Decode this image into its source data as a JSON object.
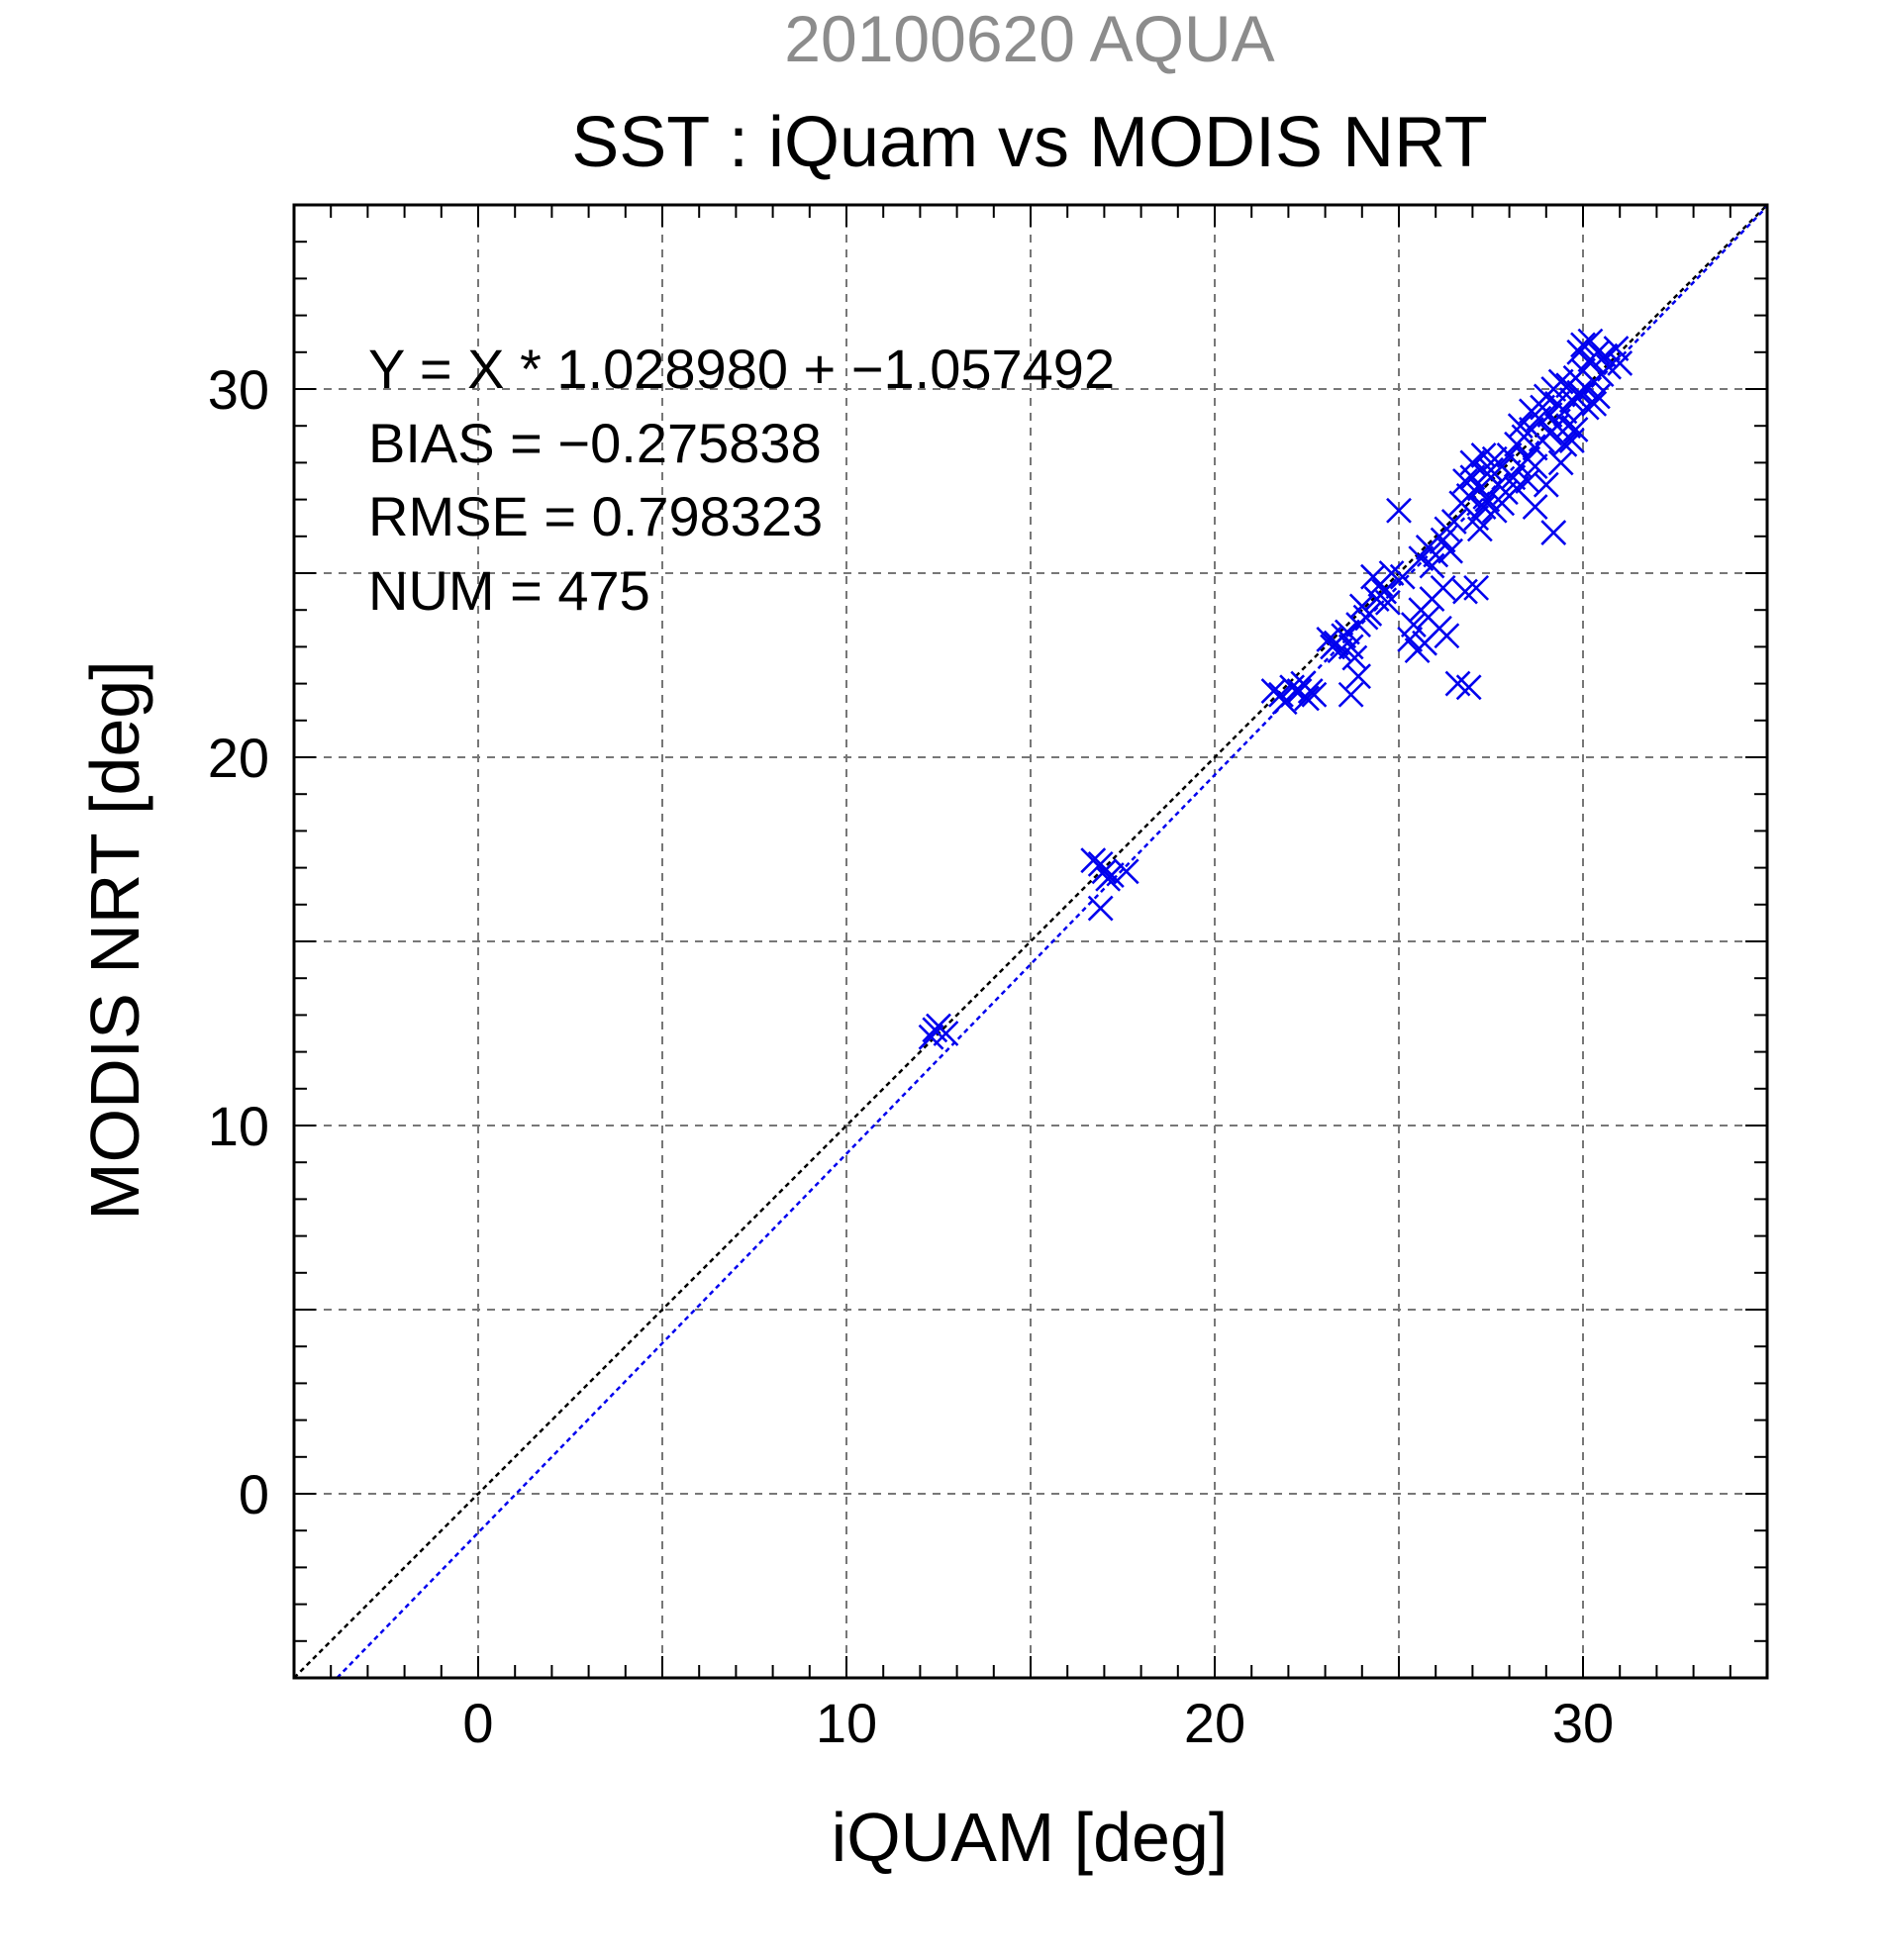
{
  "chart_data": {
    "type": "scatter",
    "supertitle": "20100620 AQUA",
    "title": "SST : iQuam vs MODIS NRT",
    "xlabel": "iQUAM [deg]",
    "ylabel": "MODIS NRT [deg]",
    "xlim": [
      -5,
      35
    ],
    "ylim": [
      -5,
      35
    ],
    "x_ticks": [
      0,
      10,
      20,
      30
    ],
    "y_ticks": [
      0,
      10,
      20,
      30
    ],
    "grid": true,
    "annotations": [
      "Y = X * 1.028980 + −1.057492",
      "BIAS = −0.275838",
      "RMSE = 0.798323",
      "NUM = 475"
    ],
    "lines": [
      {
        "label": "identity",
        "slope": 1.0,
        "intercept": 0.0,
        "color": "#000000"
      },
      {
        "label": "fit",
        "slope": 1.02898,
        "intercept": -1.057492,
        "color": "#0000ee"
      }
    ],
    "series": [
      {
        "marker": "x",
        "color": "#0000ee",
        "points": [
          [
            12.4,
            12.6
          ],
          [
            12.5,
            12.7
          ],
          [
            12.7,
            12.5
          ],
          [
            12.3,
            12.4
          ],
          [
            16.7,
            17.2
          ],
          [
            16.9,
            17.1
          ],
          [
            17.0,
            16.9
          ],
          [
            17.2,
            16.8
          ],
          [
            17.6,
            16.9
          ],
          [
            16.9,
            15.9
          ],
          [
            17.1,
            16.7
          ],
          [
            21.6,
            21.8
          ],
          [
            21.8,
            21.7
          ],
          [
            22.1,
            21.9
          ],
          [
            22.3,
            21.8
          ],
          [
            22.5,
            21.6
          ],
          [
            22.7,
            21.7
          ],
          [
            22.4,
            22.0
          ],
          [
            21.9,
            21.5
          ],
          [
            22.6,
            21.8
          ],
          [
            23.1,
            23.2
          ],
          [
            23.3,
            23.1
          ],
          [
            23.5,
            23.3
          ],
          [
            23.7,
            23.0
          ],
          [
            23.4,
            22.9
          ],
          [
            23.6,
            23.4
          ],
          [
            23.2,
            23.0
          ],
          [
            23.8,
            22.7
          ],
          [
            23.9,
            22.2
          ],
          [
            23.7,
            21.7
          ],
          [
            23.9,
            23.6
          ],
          [
            24.0,
            24.1
          ],
          [
            24.2,
            23.9
          ],
          [
            24.4,
            24.3
          ],
          [
            24.6,
            24.5
          ],
          [
            24.3,
            24.9
          ],
          [
            24.8,
            25.0
          ],
          [
            25.1,
            24.9
          ],
          [
            24.7,
            24.2
          ],
          [
            24.5,
            24.7
          ],
          [
            24.1,
            23.8
          ],
          [
            25.0,
            26.7
          ],
          [
            25.3,
            23.2
          ],
          [
            25.5,
            22.9
          ],
          [
            25.7,
            23.1
          ],
          [
            25.4,
            23.6
          ],
          [
            25.6,
            24.0
          ],
          [
            25.8,
            23.8
          ],
          [
            26.1,
            23.5
          ],
          [
            26.3,
            23.3
          ],
          [
            25.9,
            24.3
          ],
          [
            26.2,
            24.6
          ],
          [
            25.6,
            25.4
          ],
          [
            25.8,
            25.7
          ],
          [
            26.0,
            25.5
          ],
          [
            26.2,
            25.9
          ],
          [
            26.4,
            25.6
          ],
          [
            25.9,
            25.2
          ],
          [
            26.3,
            26.2
          ],
          [
            26.5,
            26.4
          ],
          [
            26.6,
            22.0
          ],
          [
            26.9,
            21.9
          ],
          [
            26.8,
            24.5
          ],
          [
            27.1,
            24.6
          ],
          [
            26.7,
            26.9
          ],
          [
            26.9,
            27.1
          ],
          [
            27.0,
            27.6
          ],
          [
            27.2,
            27.3
          ],
          [
            27.4,
            27.0
          ],
          [
            27.1,
            26.5
          ],
          [
            27.3,
            26.8
          ],
          [
            27.5,
            27.8
          ],
          [
            27.7,
            27.4
          ],
          [
            27.6,
            26.7
          ],
          [
            27.8,
            27.9
          ],
          [
            27.9,
            27.2
          ],
          [
            27.0,
            28.0
          ],
          [
            27.3,
            28.2
          ],
          [
            27.6,
            28.1
          ],
          [
            27.2,
            26.2
          ],
          [
            26.8,
            27.5
          ],
          [
            27.4,
            27.7
          ],
          [
            27.8,
            26.9
          ],
          [
            28.0,
            28.2
          ],
          [
            28.1,
            27.6
          ],
          [
            28.2,
            28.5
          ],
          [
            28.3,
            27.9
          ],
          [
            28.4,
            28.7
          ],
          [
            28.5,
            28.1
          ],
          [
            28.6,
            28.9
          ],
          [
            28.7,
            28.4
          ],
          [
            28.8,
            29.2
          ],
          [
            28.9,
            28.6
          ],
          [
            28.2,
            27.3
          ],
          [
            28.5,
            27.5
          ],
          [
            28.7,
            27.9
          ],
          [
            28.3,
            29.0
          ],
          [
            28.6,
            29.4
          ],
          [
            28.9,
            29.5
          ],
          [
            28.7,
            26.8
          ],
          [
            29.0,
            27.4
          ],
          [
            29.0,
            29.8
          ],
          [
            29.1,
            29.3
          ],
          [
            29.2,
            30.0
          ],
          [
            29.3,
            29.6
          ],
          [
            29.4,
            30.2
          ],
          [
            29.5,
            29.4
          ],
          [
            29.6,
            30.1
          ],
          [
            29.7,
            29.7
          ],
          [
            29.8,
            30.3
          ],
          [
            29.9,
            29.9
          ],
          [
            29.1,
            28.8
          ],
          [
            29.3,
            29.0
          ],
          [
            29.5,
            28.5
          ],
          [
            29.4,
            28.0
          ],
          [
            29.7,
            28.6
          ],
          [
            29.2,
            26.1
          ],
          [
            29.6,
            29.0
          ],
          [
            29.8,
            28.9
          ],
          [
            30.0,
            30.5
          ],
          [
            30.1,
            30.0
          ],
          [
            30.2,
            30.8
          ],
          [
            30.3,
            30.2
          ],
          [
            30.4,
            31.0
          ],
          [
            30.5,
            30.4
          ],
          [
            30.6,
            30.9
          ],
          [
            30.1,
            29.5
          ],
          [
            30.3,
            29.6
          ],
          [
            30.0,
            31.2
          ],
          [
            30.2,
            31.3
          ],
          [
            30.7,
            30.6
          ],
          [
            30.9,
            31.1
          ],
          [
            31.0,
            30.7
          ],
          [
            30.4,
            29.8
          ],
          [
            29.9,
            31.0
          ]
        ]
      }
    ]
  }
}
